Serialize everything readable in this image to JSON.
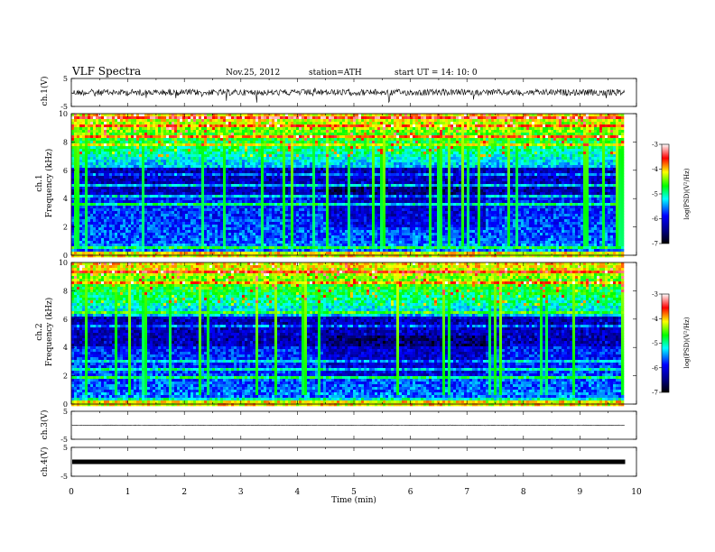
{
  "header": {
    "title": "VLF  Spectra",
    "date": "Nov.25, 2012",
    "station": "station=ATH",
    "start_ut": "start  UT  =    14: 10: 0"
  },
  "chart_data": {
    "type": "heatmap",
    "x_axis": {
      "label": "Time  (min)",
      "range": [
        0,
        10
      ],
      "ticks": [
        "0",
        "1",
        "2",
        "3",
        "4",
        "5",
        "6",
        "7",
        "8",
        "9",
        "10"
      ]
    },
    "panels": [
      {
        "name": "ch1-waveform",
        "type": "line",
        "ylabel": "ch.1(V)",
        "ylim": [
          -5,
          5
        ],
        "yticks": [
          "5",
          "-5"
        ]
      },
      {
        "name": "ch1-spectrogram",
        "type": "heatmap",
        "ylabel_top": "ch.1",
        "ylabel": "Frequency  (kHz)",
        "ylim": [
          0,
          10
        ],
        "yticks": [
          "0",
          "2",
          "4",
          "6",
          "8",
          "10"
        ],
        "colorbar": {
          "label": "log(PSD)(V²/Hz)",
          "range": [
            -7,
            -3
          ],
          "ticks": [
            "-3",
            "-4",
            "-5",
            "-6",
            "-7"
          ]
        }
      },
      {
        "name": "ch2-spectrogram",
        "type": "heatmap",
        "ylabel_top": "ch.2",
        "ylabel": "Frequency  (kHz)",
        "ylim": [
          0,
          10
        ],
        "yticks": [
          "0",
          "2",
          "4",
          "6",
          "8",
          "10"
        ],
        "colorbar": {
          "label": "log(PSD)(V²/Hz)",
          "range": [
            -7,
            -3
          ],
          "ticks": [
            "-3",
            "-4",
            "-5",
            "-6",
            "-7"
          ]
        }
      },
      {
        "name": "ch3-waveform",
        "type": "line",
        "ylabel": "ch.3(V)",
        "ylim": [
          -5,
          5
        ],
        "yticks": [
          "5",
          "-5"
        ]
      },
      {
        "name": "ch4-waveform",
        "type": "line",
        "ylabel": "ch.4(V)",
        "ylim": [
          -5,
          5
        ],
        "yticks": [
          "5",
          "-5"
        ]
      }
    ],
    "data_end_minutes": 9.8,
    "colors": {
      "scale": [
        "#000000",
        "#00007a",
        "#0000ff",
        "#00ffff",
        "#00ff00",
        "#ffff00",
        "#ff0000",
        "#ffffff"
      ]
    }
  }
}
